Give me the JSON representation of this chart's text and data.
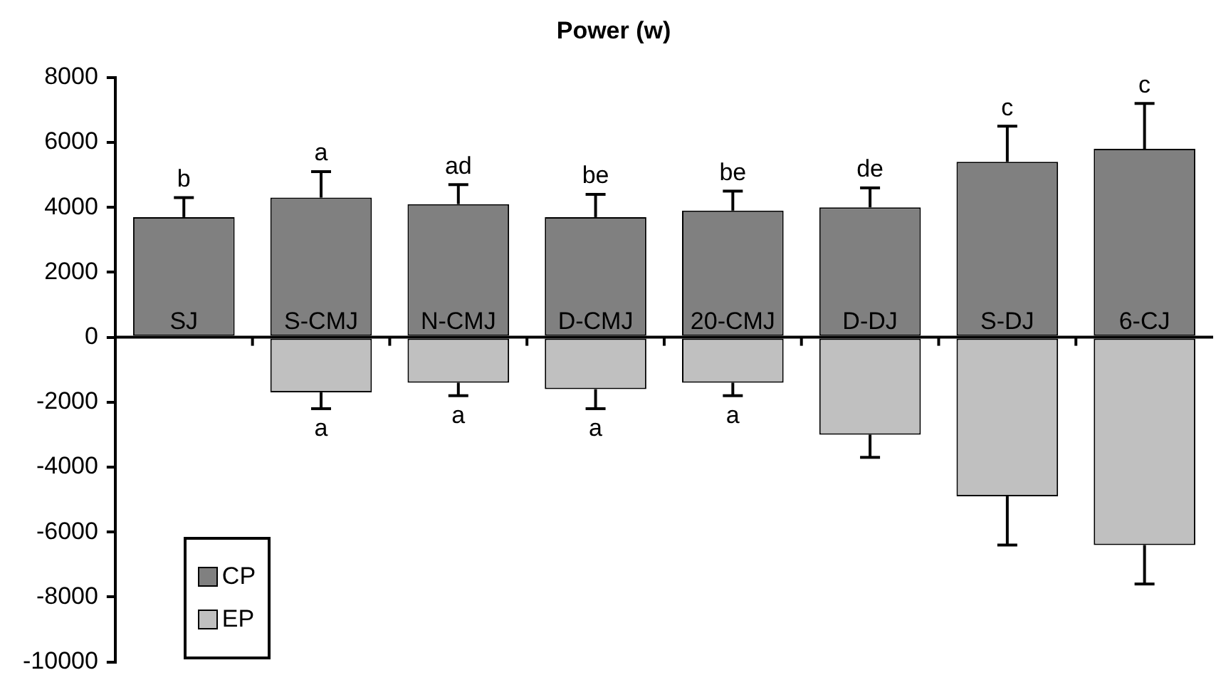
{
  "chart_data": {
    "type": "bar",
    "title": "Power (w)",
    "categories": [
      "SJ",
      "S-CMJ",
      "N-CMJ",
      "D-CMJ",
      "20-CMJ",
      "D-DJ",
      "S-DJ",
      "6-CJ"
    ],
    "stacked": true,
    "series": [
      {
        "name": "CP",
        "color": "#808080",
        "values": [
          3700,
          4300,
          4100,
          3700,
          3900,
          4000,
          5400,
          5800
        ],
        "errors": [
          [
            3700,
            4300
          ],
          [
            4300,
            5100
          ],
          [
            4100,
            4700
          ],
          [
            3700,
            4400
          ],
          [
            3900,
            4500
          ],
          [
            4000,
            4600
          ],
          [
            5400,
            6500
          ],
          [
            5800,
            7200
          ]
        ]
      },
      {
        "name": "EP",
        "color": "#c0c0c0",
        "values": [
          0,
          -1700,
          -1400,
          -1600,
          -1400,
          -3000,
          -4900,
          -6400
        ],
        "errors": [
          null,
          [
            -2200,
            -1700
          ],
          [
            -1800,
            -1400
          ],
          [
            -2200,
            -1600
          ],
          [
            -1800,
            -1400
          ],
          [
            -3700,
            -3000
          ],
          [
            -6400,
            -4900
          ],
          [
            -7600,
            -6400
          ]
        ]
      }
    ],
    "ylim": [
      -10000,
      8000
    ],
    "yticks": [
      -10000,
      -8000,
      -6000,
      -4000,
      -2000,
      0,
      2000,
      4000,
      6000,
      8000
    ],
    "grid": false,
    "legend": "bottom left",
    "annotations": [
      {
        "text": "b",
        "x": "SJ",
        "y": 4300
      },
      {
        "text": "a",
        "x": "S-CMJ",
        "y": 5100
      },
      {
        "text": "ad",
        "x": "N-CMJ",
        "y": 4700
      },
      {
        "text": "be",
        "x": "D-CMJ",
        "y": 4400
      },
      {
        "text": "be",
        "x": "20-CMJ",
        "y": 4500
      },
      {
        "text": "de",
        "x": "D-DJ",
        "y": 4600
      },
      {
        "text": "c",
        "x": "S-DJ",
        "y": 6500
      },
      {
        "text": "c",
        "x": "6-CJ",
        "y": 7200
      },
      {
        "text": "a",
        "x": "S-CMJ",
        "y": -2200
      },
      {
        "text": "a",
        "x": "N-CMJ",
        "y": -1800
      },
      {
        "text": "a",
        "x": "D-CMJ",
        "y": -2200
      },
      {
        "text": "a",
        "x": "20-CMJ",
        "y": -1800
      }
    ]
  }
}
